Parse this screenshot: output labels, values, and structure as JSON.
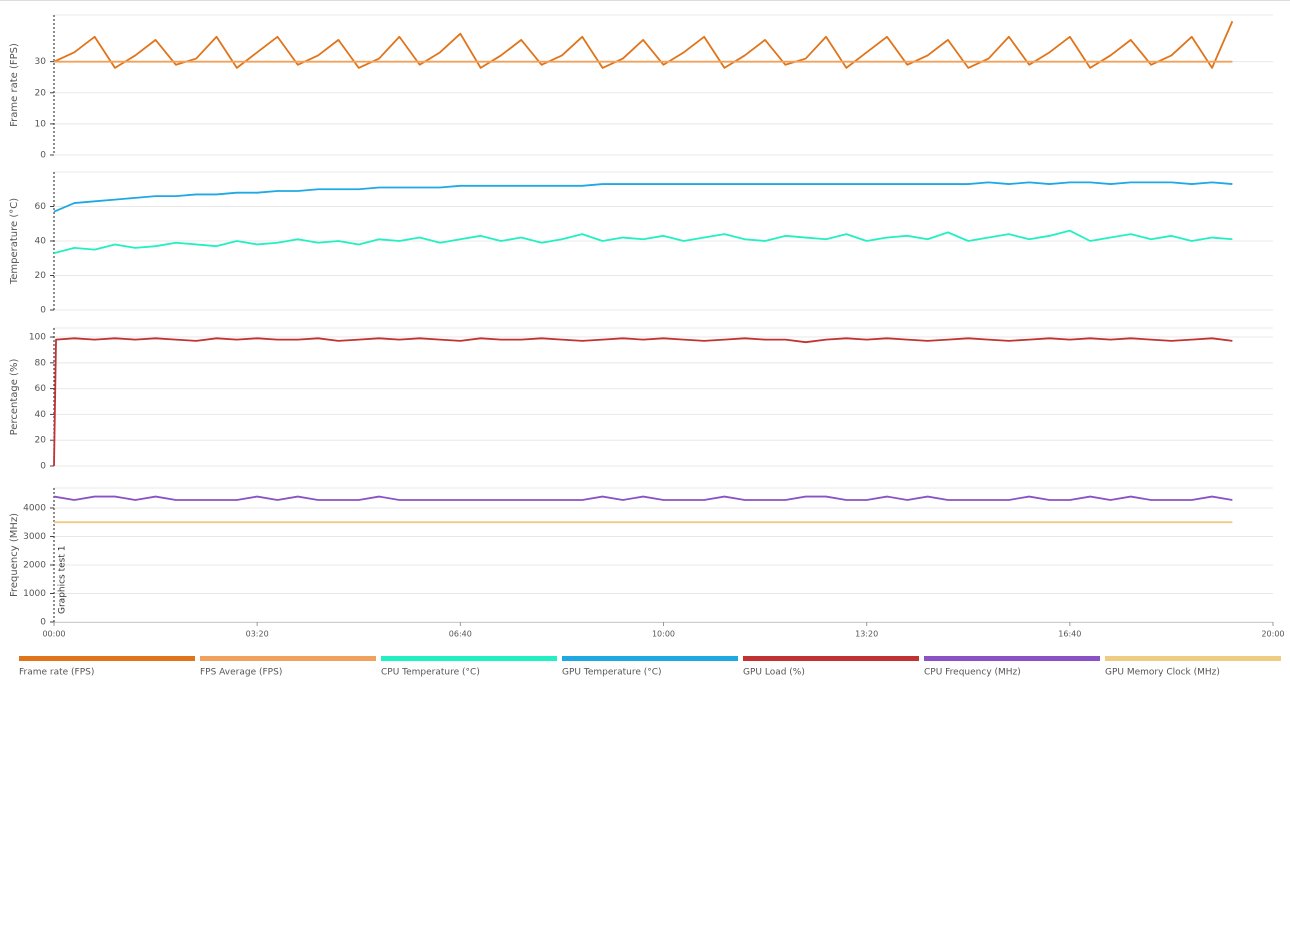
{
  "chart_data": [
    {
      "type": "line",
      "y_label": "Frame rate (FPS)",
      "xlim": [
        0,
        1200
      ],
      "ylim": [
        0,
        45
      ],
      "yticks": [
        0,
        10,
        20,
        30
      ],
      "grid": true,
      "x": [
        0,
        20,
        40,
        60,
        80,
        100,
        120,
        140,
        160,
        180,
        200,
        220,
        240,
        260,
        280,
        300,
        320,
        340,
        360,
        380,
        400,
        420,
        440,
        460,
        480,
        500,
        520,
        540,
        560,
        580,
        600,
        620,
        640,
        660,
        680,
        700,
        720,
        740,
        760,
        780,
        800,
        820,
        840,
        860,
        880,
        900,
        920,
        940,
        960,
        980,
        1000,
        1020,
        1040,
        1060,
        1080,
        1100,
        1120,
        1140,
        1160
      ],
      "series": [
        {
          "name": "Frame rate (FPS)",
          "color": "#e0741a",
          "values": [
            30,
            33,
            38,
            28,
            32,
            37,
            29,
            31,
            38,
            28,
            33,
            38,
            29,
            32,
            37,
            28,
            31,
            38,
            29,
            33,
            39,
            28,
            32,
            37,
            29,
            32,
            38,
            28,
            31,
            37,
            29,
            33,
            38,
            28,
            32,
            37,
            29,
            31,
            38,
            28,
            33,
            38,
            29,
            32,
            37,
            28,
            31,
            38,
            29,
            33,
            38,
            28,
            32,
            37,
            29,
            32,
            38,
            28,
            43
          ]
        },
        {
          "name": "FPS Average (FPS)",
          "color": "#f0a25c",
          "x": [
            0,
            1160
          ],
          "values": [
            30,
            30
          ]
        }
      ]
    },
    {
      "type": "line",
      "y_label": "Temperature (°C)",
      "xlim": [
        0,
        1200
      ],
      "ylim": [
        0,
        80
      ],
      "yticks": [
        0,
        20,
        40,
        60
      ],
      "grid": true,
      "x": [
        0,
        20,
        40,
        60,
        80,
        100,
        120,
        140,
        160,
        180,
        200,
        220,
        240,
        260,
        280,
        300,
        320,
        340,
        360,
        380,
        400,
        420,
        440,
        460,
        480,
        500,
        520,
        540,
        560,
        580,
        600,
        620,
        640,
        660,
        680,
        700,
        720,
        740,
        760,
        780,
        800,
        820,
        840,
        860,
        880,
        900,
        920,
        940,
        960,
        980,
        1000,
        1020,
        1040,
        1060,
        1080,
        1100,
        1120,
        1140,
        1160
      ],
      "series": [
        {
          "name": "CPU Temperature (°C)",
          "color": "#22f0c2",
          "values": [
            33,
            36,
            35,
            38,
            36,
            37,
            39,
            38,
            37,
            40,
            38,
            39,
            41,
            39,
            40,
            38,
            41,
            40,
            42,
            39,
            41,
            43,
            40,
            42,
            39,
            41,
            44,
            40,
            42,
            41,
            43,
            40,
            42,
            44,
            41,
            40,
            43,
            42,
            41,
            44,
            40,
            42,
            43,
            41,
            45,
            40,
            42,
            44,
            41,
            43,
            46,
            40,
            42,
            44,
            41,
            43,
            40,
            42,
            41
          ]
        },
        {
          "name": "GPU Temperature (°C)",
          "color": "#1fa9e2",
          "values": [
            57,
            62,
            63,
            64,
            65,
            66,
            66,
            67,
            67,
            68,
            68,
            69,
            69,
            70,
            70,
            70,
            71,
            71,
            71,
            71,
            72,
            72,
            72,
            72,
            72,
            72,
            72,
            73,
            73,
            73,
            73,
            73,
            73,
            73,
            73,
            73,
            73,
            73,
            73,
            73,
            73,
            73,
            73,
            73,
            73,
            73,
            74,
            73,
            74,
            73,
            74,
            74,
            73,
            74,
            74,
            74,
            73,
            74,
            73
          ]
        }
      ]
    },
    {
      "type": "line",
      "y_label": "Percentage (%)",
      "xlim": [
        0,
        1200
      ],
      "ylim": [
        0,
        107
      ],
      "yticks": [
        0,
        20,
        40,
        60,
        80,
        100
      ],
      "grid": true,
      "x": [
        0,
        2,
        20,
        40,
        60,
        80,
        100,
        120,
        140,
        160,
        180,
        200,
        220,
        240,
        260,
        280,
        300,
        320,
        340,
        360,
        380,
        400,
        420,
        440,
        460,
        480,
        500,
        520,
        540,
        560,
        580,
        600,
        620,
        640,
        660,
        680,
        700,
        720,
        740,
        760,
        780,
        800,
        820,
        840,
        860,
        880,
        900,
        920,
        940,
        960,
        980,
        1000,
        1020,
        1040,
        1060,
        1080,
        1100,
        1120,
        1140,
        1160
      ],
      "series": [
        {
          "name": "GPU Load (%)",
          "color": "#c23232",
          "values": [
            0,
            98,
            99,
            98,
            99,
            98,
            99,
            98,
            97,
            99,
            98,
            99,
            98,
            98,
            99,
            97,
            98,
            99,
            98,
            99,
            98,
            97,
            99,
            98,
            98,
            99,
            98,
            97,
            98,
            99,
            98,
            99,
            98,
            97,
            98,
            99,
            98,
            98,
            96,
            98,
            99,
            98,
            99,
            98,
            97,
            98,
            99,
            98,
            97,
            98,
            99,
            98,
            99,
            98,
            99,
            98,
            97,
            98,
            99,
            97
          ]
        }
      ]
    },
    {
      "type": "line",
      "y_label": "Frequency (MHz)",
      "xlim": [
        0,
        1200
      ],
      "ylim": [
        0,
        4700
      ],
      "yticks": [
        0,
        1000,
        2000,
        3000,
        4000
      ],
      "grid": true,
      "xticks": [
        {
          "value": 0,
          "label": "00:00"
        },
        {
          "value": 200,
          "label": "03:20"
        },
        {
          "value": 400,
          "label": "06:40"
        },
        {
          "value": 600,
          "label": "10:00"
        },
        {
          "value": 800,
          "label": "13:20"
        },
        {
          "value": 1000,
          "label": "16:40"
        },
        {
          "value": 1200,
          "label": "20:00"
        }
      ],
      "annotations": [
        {
          "x": 0,
          "text": "Graphics test 1"
        }
      ],
      "x": [
        0,
        20,
        40,
        60,
        80,
        100,
        120,
        140,
        160,
        180,
        200,
        220,
        240,
        260,
        280,
        300,
        320,
        340,
        360,
        380,
        400,
        420,
        440,
        460,
        480,
        500,
        520,
        540,
        560,
        580,
        600,
        620,
        640,
        660,
        680,
        700,
        720,
        740,
        760,
        780,
        800,
        820,
        840,
        860,
        880,
        900,
        920,
        940,
        960,
        980,
        1000,
        1020,
        1040,
        1060,
        1080,
        1100,
        1120,
        1140,
        1160
      ],
      "series": [
        {
          "name": "CPU Frequency (MHz)",
          "color": "#8a52c4",
          "values": [
            4400,
            4280,
            4400,
            4400,
            4280,
            4400,
            4280,
            4280,
            4280,
            4280,
            4400,
            4280,
            4400,
            4280,
            4280,
            4280,
            4400,
            4280,
            4280,
            4280,
            4280,
            4280,
            4280,
            4280,
            4280,
            4280,
            4280,
            4400,
            4280,
            4400,
            4280,
            4280,
            4280,
            4400,
            4280,
            4280,
            4280,
            4400,
            4400,
            4280,
            4280,
            4400,
            4280,
            4400,
            4280,
            4280,
            4280,
            4280,
            4400,
            4280,
            4280,
            4400,
            4280,
            4400,
            4280,
            4280,
            4280,
            4400,
            4280
          ]
        },
        {
          "name": "GPU Memory Clock (MHz)",
          "color": "#f0cc82",
          "x": [
            0,
            1160
          ],
          "values": [
            3500,
            3500
          ]
        }
      ]
    }
  ]
}
